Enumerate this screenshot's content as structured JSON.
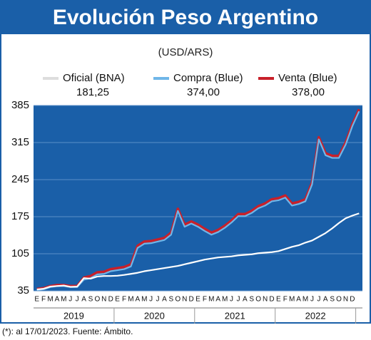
{
  "chart_data": {
    "type": "line",
    "title": "Evolución Peso Argentino",
    "subtitle": "(USD/ARS)",
    "footnote": "(*): al 17/01/2023. Fuente: Ámbito.",
    "categories": [
      "E",
      "F",
      "M",
      "A",
      "M",
      "J",
      "J",
      "A",
      "S",
      "O",
      "N",
      "D",
      "E",
      "F",
      "M",
      "A",
      "M",
      "J",
      "J",
      "A",
      "S",
      "O",
      "N",
      "D",
      "E",
      "F",
      "M",
      "A",
      "M",
      "J",
      "J",
      "A",
      "S",
      "O",
      "N",
      "D",
      "E",
      "F",
      "M",
      "A",
      "M",
      "J",
      "J",
      "A",
      "S",
      "O",
      "N",
      "D",
      null
    ],
    "year_labels": [
      "2019",
      "2020",
      "2021",
      "2022"
    ],
    "series": [
      {
        "name": "Venta (Blue)",
        "color": "#c8202a",
        "legend_value": "378,00",
        "values": [
          38.5,
          40,
          44,
          46,
          46,
          44,
          44,
          60,
          63,
          70,
          71,
          76,
          78,
          80,
          85,
          120,
          128,
          129,
          132,
          135,
          145,
          190,
          160,
          166,
          160,
          152,
          145,
          150,
          158,
          168,
          180,
          180,
          186,
          195,
          200,
          208,
          210,
          215,
          200,
          203,
          208,
          240,
          325,
          295,
          290,
          290,
          315,
          350,
          378
        ]
      },
      {
        "name": "Compra (Blue)",
        "color": "#6fb6e8",
        "legend_value": "374,00",
        "values": [
          36.5,
          38,
          42,
          44,
          44,
          42,
          42,
          56,
          59,
          66,
          67,
          72,
          74,
          76,
          81,
          116,
          124,
          125,
          128,
          131,
          141,
          186,
          156,
          162,
          156,
          148,
          141,
          146,
          154,
          164,
          176,
          176,
          182,
          191,
          196,
          204,
          206,
          211,
          196,
          199,
          204,
          236,
          321,
          291,
          286,
          286,
          311,
          346,
          374
        ]
      },
      {
        "name": "Oficial (BNA)",
        "color": "#ffffff",
        "legend_value": "181,25",
        "values": [
          37.5,
          39,
          43,
          44,
          45,
          42.5,
          43,
          59,
          58,
          62,
          63,
          63,
          63.5,
          65,
          67,
          69,
          72,
          74,
          76,
          78,
          80,
          82,
          85,
          88,
          91,
          94,
          96,
          98,
          99,
          100,
          102,
          103,
          104,
          106,
          107,
          108,
          110,
          114,
          118,
          121,
          126,
          130,
          137,
          144,
          153,
          163,
          172,
          177,
          181.25
        ]
      }
    ],
    "ylim": [
      35,
      385
    ],
    "yticks": [
      35,
      105,
      175,
      245,
      315,
      385
    ],
    "grid": true
  }
}
